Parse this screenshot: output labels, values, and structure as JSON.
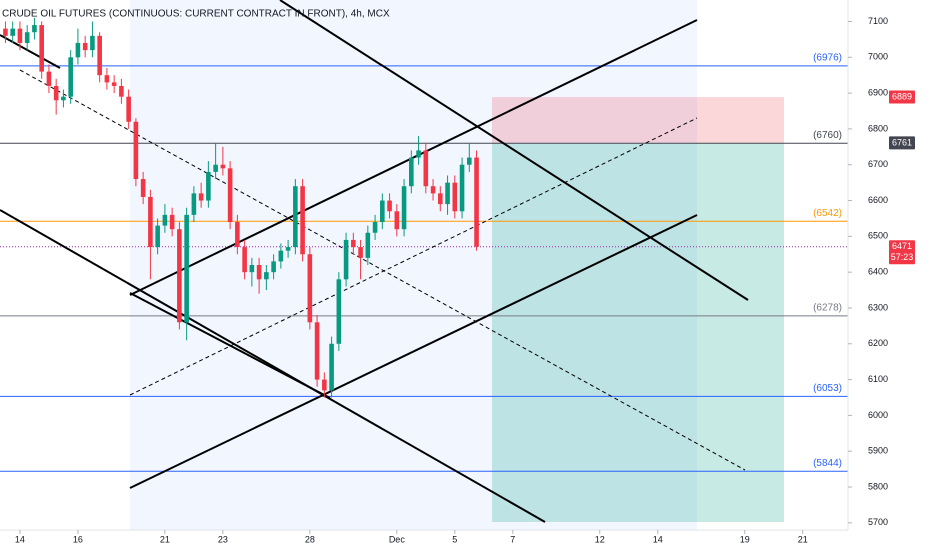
{
  "chart_data": {
    "type": "candlestick",
    "title": "CRUDE OIL FUTURES (CONTINUOUS: CURRENT CONTRACT IN FRONT), 4h, MCX",
    "x": [
      -2,
      -1,
      0,
      1,
      2,
      3,
      4,
      5,
      6,
      7,
      8,
      9,
      10,
      11,
      12,
      13,
      14,
      15,
      16,
      17,
      18,
      19,
      20,
      21,
      22,
      23,
      24,
      25,
      26,
      27,
      28,
      29,
      30,
      31,
      32,
      33,
      34,
      35,
      36,
      37,
      38,
      39,
      40,
      41,
      42,
      43,
      44,
      45,
      46,
      47,
      48,
      49,
      50,
      51,
      52,
      53,
      54,
      55,
      56,
      57,
      58,
      59,
      60,
      61,
      62,
      63
    ],
    "open": [
      7080,
      7060,
      7080,
      7040,
      7070,
      7090,
      6960,
      6920,
      6880,
      6890,
      7000,
      7040,
      7020,
      7060,
      6950,
      6930,
      6920,
      6890,
      6820,
      6660,
      6610,
      6470,
      6530,
      6560,
      6520,
      6260,
      6560,
      6620,
      6600,
      6680,
      6700,
      6690,
      6540,
      6470,
      6400,
      6420,
      6380,
      6400,
      6430,
      6460,
      6470,
      6640,
      6450,
      6260,
      6100,
      6070,
      6200,
      6380,
      6490,
      6470,
      6440,
      6510,
      6540,
      6600,
      6570,
      6520,
      6640,
      6720,
      6740,
      6640,
      6620,
      6590,
      6650,
      6570,
      6700,
      6720
    ],
    "high": [
      7100,
      7100,
      7100,
      7090,
      7110,
      7100,
      6980,
      6940,
      6910,
      7020,
      7080,
      7060,
      7100,
      7070,
      6970,
      6950,
      6940,
      6910,
      6830,
      6680,
      6630,
      6550,
      6590,
      6580,
      6540,
      6580,
      6640,
      6650,
      6710,
      6760,
      6750,
      6710,
      6560,
      6490,
      6440,
      6440,
      6420,
      6450,
      6480,
      6490,
      6660,
      6660,
      6470,
      6280,
      6120,
      6220,
      6400,
      6510,
      6510,
      6490,
      6530,
      6560,
      6620,
      6620,
      6590,
      6660,
      6740,
      6780,
      6760,
      6660,
      6640,
      6670,
      6670,
      6720,
      6760,
      6740
    ],
    "low": [
      7040,
      7040,
      7020,
      7020,
      7050,
      6940,
      6900,
      6840,
      6860,
      6870,
      6980,
      7000,
      7000,
      6930,
      6910,
      6900,
      6870,
      6800,
      6640,
      6590,
      6380,
      6450,
      6510,
      6500,
      6240,
      6210,
      6540,
      6580,
      6580,
      6660,
      6670,
      6520,
      6450,
      6380,
      6360,
      6340,
      6350,
      6380,
      6410,
      6440,
      6450,
      6430,
      6240,
      6080,
      6050,
      6050,
      6180,
      6360,
      6450,
      6380,
      6420,
      6490,
      6520,
      6550,
      6500,
      6500,
      6620,
      6700,
      6620,
      6600,
      6570,
      6560,
      6550,
      6550,
      6680,
      6460
    ],
    "close": [
      7060,
      7080,
      7040,
      7070,
      7090,
      6960,
      6920,
      6880,
      6890,
      7000,
      7040,
      7020,
      7060,
      6950,
      6930,
      6920,
      6890,
      6820,
      6660,
      6610,
      6470,
      6530,
      6560,
      6520,
      6260,
      6560,
      6620,
      6600,
      6680,
      6700,
      6690,
      6540,
      6470,
      6400,
      6420,
      6380,
      6400,
      6430,
      6460,
      6470,
      6640,
      6450,
      6260,
      6100,
      6070,
      6200,
      6380,
      6490,
      6470,
      6440,
      6510,
      6540,
      6600,
      6570,
      6520,
      6640,
      6720,
      6740,
      6640,
      6620,
      6590,
      6650,
      6570,
      6700,
      6720,
      6471
    ],
    "up_color": "#089981",
    "down_color": "#f23645",
    "xlim": [
      -2.75,
      114.25
    ],
    "xticks": [
      {
        "value": 0,
        "label": "14"
      },
      {
        "value": 8,
        "label": "16"
      },
      {
        "value": 20,
        "label": "21"
      },
      {
        "value": 28,
        "label": "23"
      },
      {
        "value": 40,
        "label": "28"
      },
      {
        "value": 52,
        "label": "Dec"
      },
      {
        "value": 60,
        "label": "5"
      },
      {
        "value": 68,
        "label": "7"
      },
      {
        "value": 80,
        "label": "12"
      },
      {
        "value": 88,
        "label": "14"
      },
      {
        "value": 100,
        "label": "19"
      },
      {
        "value": 108,
        "label": "21"
      }
    ],
    "ylim": [
      5680,
      7160
    ],
    "yticks": [
      5700,
      5800,
      5900,
      6000,
      6100,
      6200,
      6300,
      6400,
      6500,
      6600,
      6700,
      6800,
      6900,
      7000,
      7100
    ],
    "levels": [
      {
        "value": 6976,
        "label": "(6976)",
        "color": "#2962ff"
      },
      {
        "value": 6760,
        "label": "(6760)",
        "color": "#434651"
      },
      {
        "value": 6542,
        "label": "(6542)",
        "color": "#ff9800"
      },
      {
        "value": 6278,
        "label": "(6278)",
        "color": "#787b86"
      },
      {
        "value": 6053,
        "label": "(6053)",
        "color": "#2962ff"
      },
      {
        "value": 5844,
        "label": "(5844)",
        "color": "#2962ff"
      }
    ],
    "price_labels": [
      {
        "value": 6889,
        "color": "#f23645"
      },
      {
        "value": 6761,
        "color": "#434651"
      },
      {
        "value": 6471,
        "color": "#f23645",
        "countdown": "57:23"
      }
    ]
  }
}
